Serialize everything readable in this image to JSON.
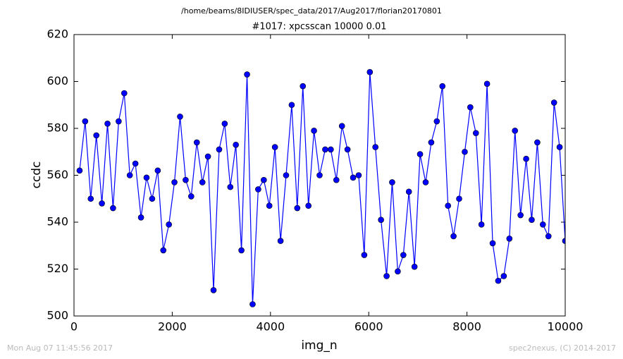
{
  "chart_data": {
    "type": "line",
    "suptitle": "/home/beams/8IDIUSER/spec_data/2017/Aug2017/florian20170801",
    "title": "#1017: xpcsscan 10000 0.01",
    "xlabel": "img_n",
    "ylabel": "ccdc",
    "color": "#0000ff",
    "marker": "circle",
    "x": [
      114,
      227,
      341,
      455,
      568,
      682,
      795,
      909,
      1023,
      1136,
      1250,
      1364,
      1477,
      1591,
      1705,
      1818,
      1932,
      2045,
      2159,
      2273,
      2386,
      2500,
      2614,
      2727,
      2841,
      2955,
      3068,
      3182,
      3295,
      3409,
      3523,
      3636,
      3750,
      3864,
      3977,
      4091,
      4205,
      4318,
      4432,
      4545,
      4659,
      4773,
      4886,
      5000,
      5114,
      5227,
      5341,
      5455,
      5568,
      5682,
      5795,
      5909,
      6023,
      6136,
      6250,
      6364,
      6477,
      6591,
      6705,
      6818,
      6932,
      7045,
      7159,
      7273,
      7386,
      7500,
      7614,
      7727,
      7841,
      7955,
      8068,
      8182,
      8295,
      8409,
      8523,
      8636,
      8750,
      8864,
      8977,
      9091,
      9205,
      9318,
      9432,
      9545,
      9659,
      9773,
      9886,
      10000
    ],
    "values": [
      562,
      583,
      550,
      577,
      548,
      582,
      546,
      583,
      595,
      560,
      565,
      542,
      559,
      550,
      562,
      528,
      539,
      557,
      585,
      558,
      551,
      574,
      557,
      568,
      511,
      571,
      582,
      555,
      573,
      528,
      603,
      505,
      554,
      558,
      547,
      572,
      532,
      560,
      590,
      546,
      598,
      547,
      579,
      560,
      571,
      571,
      558,
      581,
      571,
      559,
      560,
      526,
      604,
      572,
      541,
      517,
      557,
      519,
      526,
      553,
      521,
      569,
      557,
      574,
      583,
      598,
      547,
      534,
      550,
      570,
      589,
      578,
      539,
      599,
      531,
      515,
      517,
      533,
      579,
      543,
      567,
      541,
      574,
      539,
      534,
      591,
      572,
      532
    ],
    "xlim": [
      0,
      10000
    ],
    "xticks": [
      0,
      2000,
      4000,
      6000,
      8000,
      10000
    ],
    "ylim": [
      500,
      620
    ],
    "yticks": [
      500,
      520,
      540,
      560,
      580,
      600,
      620
    ],
    "grid": false
  },
  "footer": {
    "left": "Mon Aug 07 11:45:56 2017",
    "right": "spec2nexus, (C) 2014-2017"
  }
}
